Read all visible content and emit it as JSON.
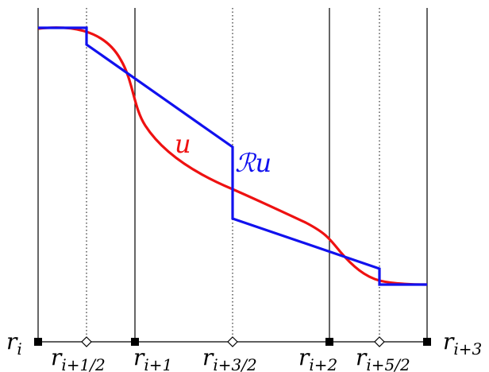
{
  "diagram": {
    "curve_label": "u",
    "reconstruction_label": "ℛu",
    "axis_labels": [
      {
        "base": "r",
        "sub": "i"
      },
      {
        "base": "r",
        "sub": "i+1/2"
      },
      {
        "base": "r",
        "sub": "i+1"
      },
      {
        "base": "r",
        "sub": "i+3/2"
      },
      {
        "base": "r",
        "sub": "i+2"
      },
      {
        "base": "r",
        "sub": "i+5/2"
      },
      {
        "base": "r",
        "sub": "i+3"
      }
    ],
    "colors": {
      "exact_solution": "#ee1111",
      "reconstruction": "#1111ee",
      "grid": "#000000"
    }
  }
}
